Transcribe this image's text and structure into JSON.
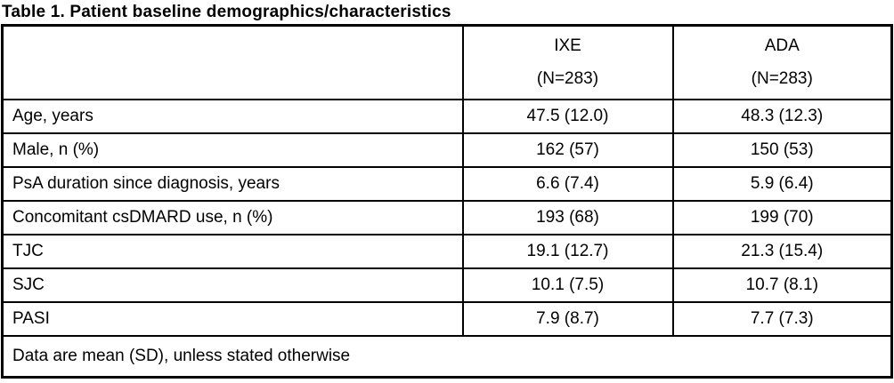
{
  "title": "Table 1. Patient baseline demographics/characteristics",
  "table": {
    "columns": [
      {
        "name": "IXE",
        "n": "(N=283)"
      },
      {
        "name": "ADA",
        "n": "(N=283)"
      }
    ],
    "rows": [
      {
        "label": "Age, years",
        "ixe": "47.5 (12.0)",
        "ada": "48.3 (12.3)"
      },
      {
        "label": "Male, n (%)",
        "ixe": "162 (57)",
        "ada": "150 (53)"
      },
      {
        "label": "PsA duration since diagnosis, years",
        "ixe": "6.6 (7.4)",
        "ada": "5.9 (6.4)"
      },
      {
        "label": "Concomitant csDMARD use, n (%)",
        "ixe": "193 (68)",
        "ada": "199 (70)"
      },
      {
        "label": "TJC",
        "ixe": "19.1 (12.7)",
        "ada": "21.3 (15.4)"
      },
      {
        "label": "SJC",
        "ixe": "10.1 (7.5)",
        "ada": "10.7 (8.1)"
      },
      {
        "label": "PASI",
        "ixe": "7.9 (8.7)",
        "ada": "7.7 (7.3)"
      }
    ],
    "footer": "Data are mean (SD), unless stated otherwise"
  },
  "colors": {
    "border": "#000000",
    "text": "#000000",
    "background": "#ffffff"
  }
}
